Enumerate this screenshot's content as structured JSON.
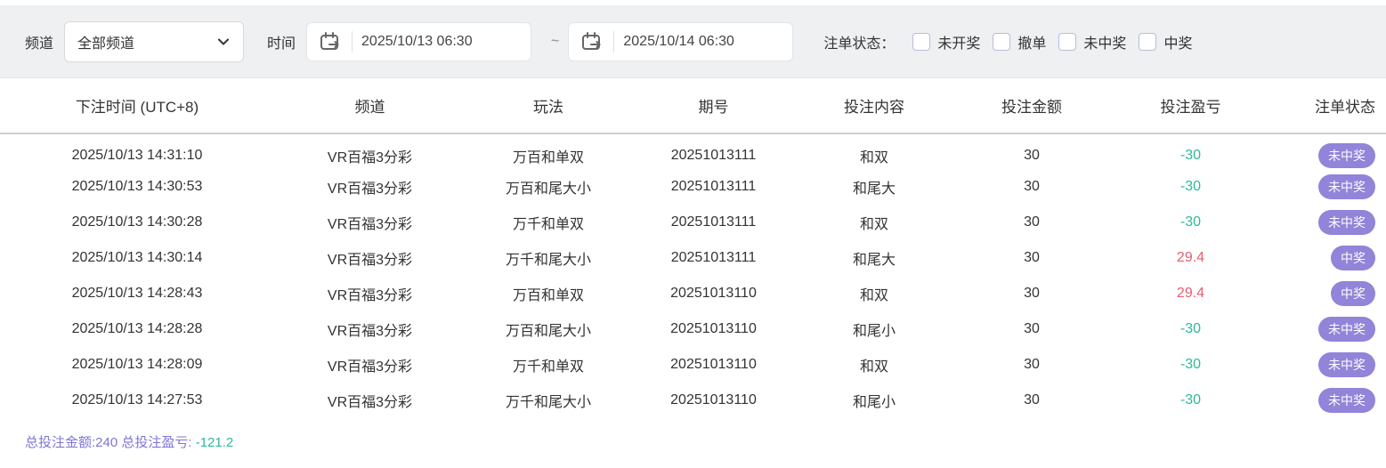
{
  "filter_bar": {
    "channel_label": "频道",
    "channel_value": "全部频道",
    "time_label": "时间",
    "time_from": "2025/10/13 06:30",
    "time_separator": "~",
    "time_to": "2025/10/14 06:30",
    "status_label": "注单状态：",
    "status_options": [
      {
        "label": "未开奖",
        "checked": false
      },
      {
        "label": "撤单",
        "checked": false
      },
      {
        "label": "未中奖",
        "checked": false
      },
      {
        "label": "中奖",
        "checked": false
      }
    ]
  },
  "table": {
    "columns": [
      "下注时间 (UTC+8)",
      "频道",
      "玩法",
      "期号",
      "投注内容",
      "投注金额",
      "投注盈亏",
      "注单状态"
    ],
    "rows": [
      {
        "time": "2025/10/13 14:31:10",
        "channel": "VR百福3分彩",
        "play": "万百和单双",
        "issue": "20251013111",
        "content": "和双",
        "amount": "30",
        "profit": "-30",
        "status": "未中奖"
      },
      {
        "time": "2025/10/13 14:30:53",
        "channel": "VR百福3分彩",
        "play": "万百和尾大小",
        "issue": "20251013111",
        "content": "和尾大",
        "amount": "30",
        "profit": "-30",
        "status": "未中奖"
      },
      {
        "time": "2025/10/13 14:30:28",
        "channel": "VR百福3分彩",
        "play": "万千和单双",
        "issue": "20251013111",
        "content": "和双",
        "amount": "30",
        "profit": "-30",
        "status": "未中奖"
      },
      {
        "time": "2025/10/13 14:30:14",
        "channel": "VR百福3分彩",
        "play": "万千和尾大小",
        "issue": "20251013111",
        "content": "和尾大",
        "amount": "30",
        "profit": "29.4",
        "status": "中奖"
      },
      {
        "time": "2025/10/13 14:28:43",
        "channel": "VR百福3分彩",
        "play": "万百和单双",
        "issue": "20251013110",
        "content": "和双",
        "amount": "30",
        "profit": "29.4",
        "status": "中奖"
      },
      {
        "time": "2025/10/13 14:28:28",
        "channel": "VR百福3分彩",
        "play": "万百和尾大小",
        "issue": "20251013110",
        "content": "和尾小",
        "amount": "30",
        "profit": "-30",
        "status": "未中奖"
      },
      {
        "time": "2025/10/13 14:28:09",
        "channel": "VR百福3分彩",
        "play": "万千和单双",
        "issue": "20251013110",
        "content": "和双",
        "amount": "30",
        "profit": "-30",
        "status": "未中奖"
      },
      {
        "time": "2025/10/13 14:27:53",
        "channel": "VR百福3分彩",
        "play": "万千和尾大小",
        "issue": "20251013110",
        "content": "和尾小",
        "amount": "30",
        "profit": "-30",
        "status": "未中奖"
      }
    ]
  },
  "summary": {
    "total_amount_label": "总投注金额:",
    "total_amount": "240",
    "total_profit_label": "总投注盈亏:",
    "total_profit": "-121.2"
  },
  "colors": {
    "filter_bar_bg": "#eef0f1",
    "accent_purple": "#9184d9",
    "summary_purple": "#7f75d5",
    "profit_negative": "#2eb99a",
    "profit_positive": "#ee5b72"
  }
}
